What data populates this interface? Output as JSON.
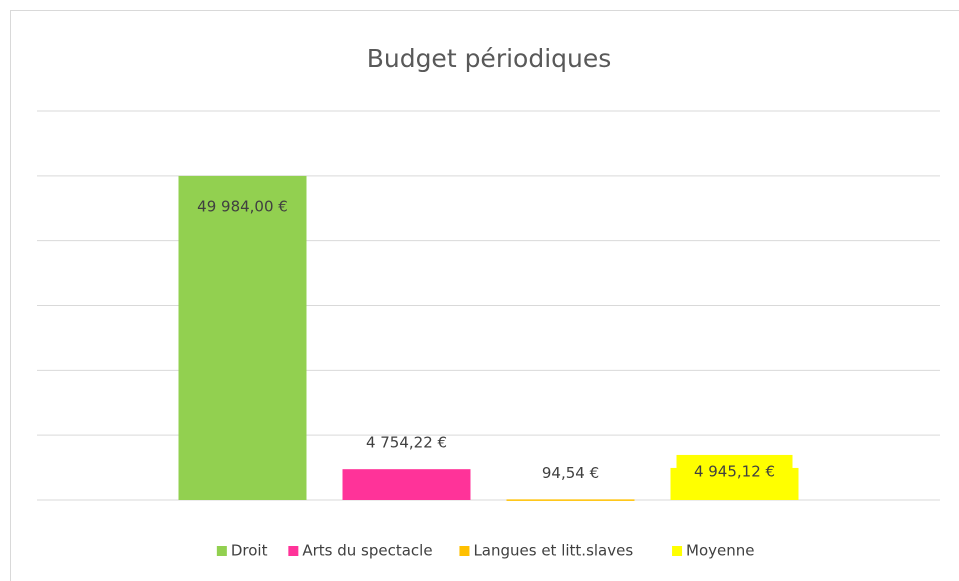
{
  "chart_data": {
    "type": "bar",
    "title": "Budget périodiques",
    "categories": [
      null
    ],
    "series": [
      {
        "name": "Droit",
        "color": "#92d050",
        "values": [
          49984
        ],
        "value_labels": [
          "49 984,00 €"
        ]
      },
      {
        "name": "Arts du spectacle",
        "color": "#ff3399",
        "values": [
          4754.22
        ],
        "value_labels": [
          "4 754,22 €"
        ]
      },
      {
        "name": "Langues et litt.slaves",
        "color": "#ffc000",
        "values": [
          94.54
        ],
        "value_labels": [
          "94,54 €"
        ]
      },
      {
        "name": "Moyenne",
        "color": "#ffff00",
        "values": [
          4945.12
        ],
        "value_labels": [
          "4 945,12 €"
        ]
      }
    ],
    "ylim": [
      0,
      60000
    ],
    "yticks": [
      0,
      10000,
      20000,
      30000,
      40000,
      50000,
      60000
    ],
    "grid": true,
    "legend": "bottom"
  }
}
